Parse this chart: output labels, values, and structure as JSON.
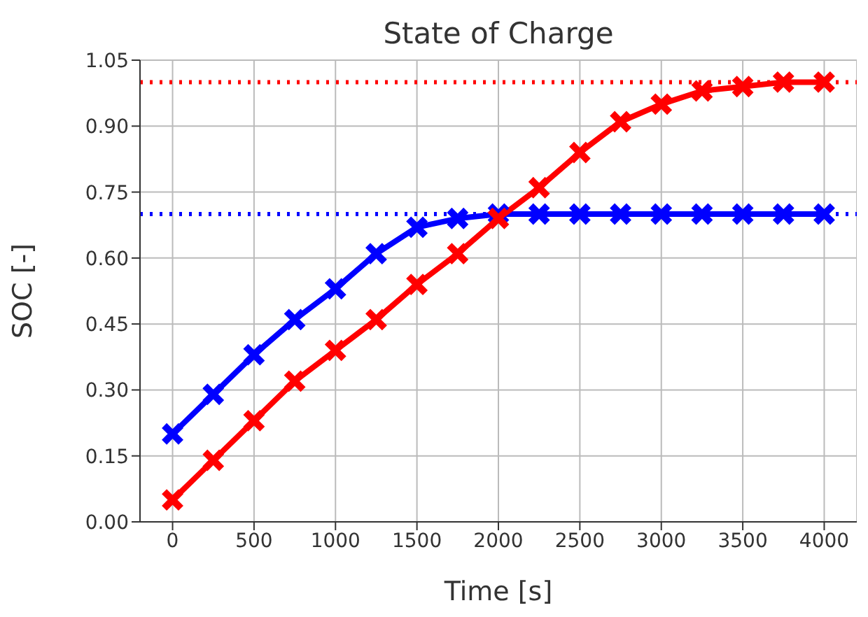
{
  "chart_data": {
    "type": "line",
    "title": "State of Charge",
    "xlabel": "Time [s]",
    "ylabel": "SOC [-]",
    "x": [
      0,
      250,
      500,
      750,
      1000,
      1250,
      1500,
      1750,
      2000,
      2250,
      2500,
      2750,
      3000,
      3250,
      3500,
      3750,
      4000
    ],
    "series": [
      {
        "color": "#0000ff",
        "values": [
          0.2,
          0.29,
          0.38,
          0.46,
          0.53,
          0.61,
          0.67,
          0.69,
          0.7,
          0.7,
          0.7,
          0.7,
          0.7,
          0.7,
          0.7,
          0.7,
          0.7
        ]
      },
      {
        "color": "#ff0000",
        "values": [
          0.05,
          0.14,
          0.23,
          0.32,
          0.39,
          0.46,
          0.54,
          0.61,
          0.69,
          0.76,
          0.84,
          0.91,
          0.95,
          0.98,
          0.99,
          1.0,
          1.0
        ]
      }
    ],
    "ref_lines": [
      {
        "axis": "y",
        "value": 1.0,
        "color": "#ff0000",
        "line_style": "dotted"
      },
      {
        "axis": "y",
        "value": 0.7,
        "color": "#0000ff",
        "line_style": "dotted"
      }
    ],
    "xlim": [
      -200,
      4200
    ],
    "xticks": [
      0,
      500,
      1000,
      1500,
      2000,
      2500,
      3000,
      3500,
      4000
    ],
    "ylim": [
      0,
      1.05
    ],
    "yticks": [
      {
        "value": 0,
        "label": "0.00"
      },
      {
        "value": 0.15,
        "label": "0.15"
      },
      {
        "value": 0.3,
        "label": "0.30"
      },
      {
        "value": 0.45,
        "label": "0.45"
      },
      {
        "value": 0.6,
        "label": "0.60"
      },
      {
        "value": 0.75,
        "label": "0.75"
      },
      {
        "value": 0.9,
        "label": "0.90"
      },
      {
        "value": 1.05,
        "label": "1.05"
      }
    ],
    "grid": true,
    "marker": "cross",
    "line_style": "solid"
  }
}
